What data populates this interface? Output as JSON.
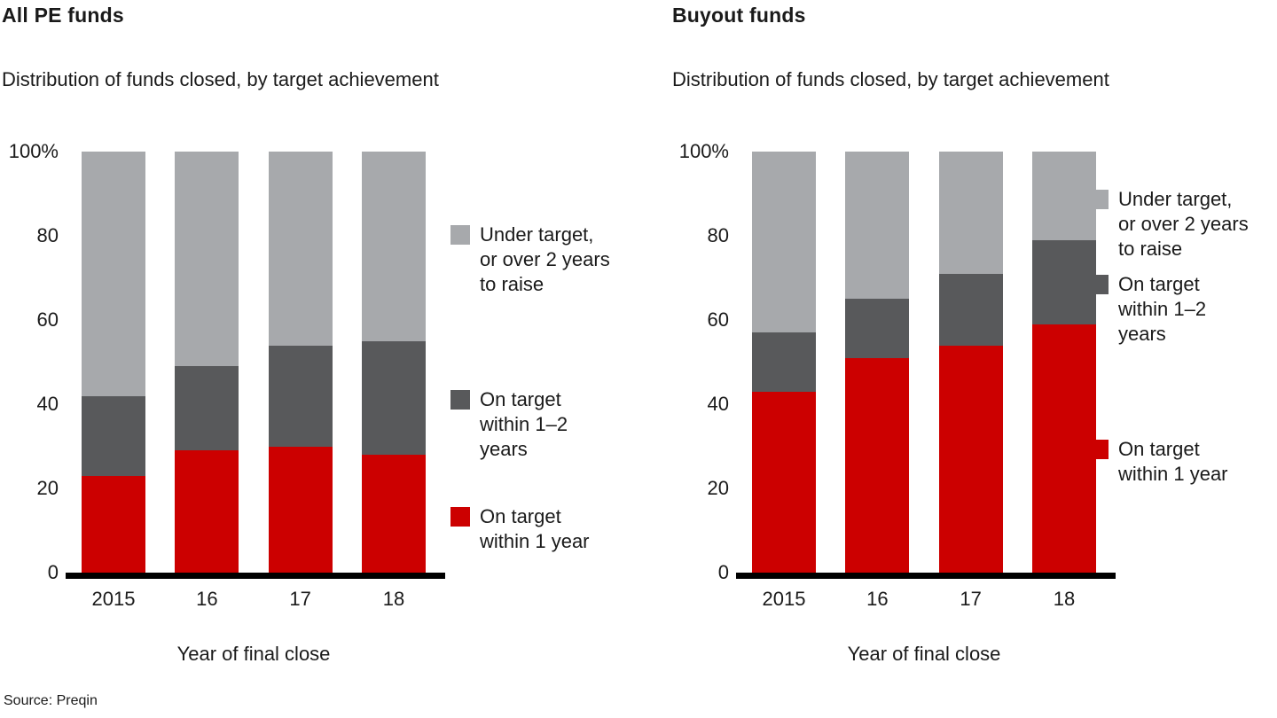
{
  "source": "Source: Preqin",
  "chart_data": [
    {
      "type": "bar",
      "stacked": true,
      "title": "All PE funds",
      "subtitle": "Distribution of funds closed, by target achievement",
      "xlabel": "Year of final close",
      "ylabel": "",
      "ylim": [
        0,
        100
      ],
      "grid": false,
      "legend_position": "right",
      "yticks": [
        {
          "label": "100%",
          "value": 100
        },
        {
          "label": "80",
          "value": 80
        },
        {
          "label": "60",
          "value": 60
        },
        {
          "label": "40",
          "value": 40
        },
        {
          "label": "20",
          "value": 20
        },
        {
          "label": "0",
          "value": 0
        }
      ],
      "categories": [
        "2015",
        "16",
        "17",
        "18"
      ],
      "series": [
        {
          "name": "On target within 1 year",
          "color": "#cc0000",
          "values": [
            23,
            29,
            30,
            28
          ]
        },
        {
          "name": "On target within 1–2 years",
          "color": "#58595b",
          "values": [
            19,
            20,
            24,
            27
          ]
        },
        {
          "name": "Under target, or over 2 years to raise",
          "color": "#a7a9ac",
          "values": [
            58,
            51,
            46,
            45
          ]
        }
      ],
      "legend": [
        {
          "label": "Under target, or over 2 years to raise",
          "color": "#a7a9ac"
        },
        {
          "label": "On target within 1–2 years",
          "color": "#58595b"
        },
        {
          "label": "On target within 1 year",
          "color": "#cc0000"
        }
      ]
    },
    {
      "type": "bar",
      "stacked": true,
      "title": "Buyout funds",
      "subtitle": "Distribution of funds closed, by target achievement",
      "xlabel": "Year of final close",
      "ylabel": "",
      "ylim": [
        0,
        100
      ],
      "grid": false,
      "legend_position": "right",
      "yticks": [
        {
          "label": "100%",
          "value": 100
        },
        {
          "label": "80",
          "value": 80
        },
        {
          "label": "60",
          "value": 60
        },
        {
          "label": "40",
          "value": 40
        },
        {
          "label": "20",
          "value": 20
        },
        {
          "label": "0",
          "value": 0
        }
      ],
      "categories": [
        "2015",
        "16",
        "17",
        "18"
      ],
      "series": [
        {
          "name": "On target within 1 year",
          "color": "#cc0000",
          "values": [
            43,
            51,
            54,
            59
          ]
        },
        {
          "name": "On target within 1–2 years",
          "color": "#58595b",
          "values": [
            14,
            14,
            17,
            20
          ]
        },
        {
          "name": "Under target, or over 2 years to raise",
          "color": "#a7a9ac",
          "values": [
            43,
            35,
            29,
            21
          ]
        }
      ],
      "legend": [
        {
          "label": "Under target, or over 2 years to raise",
          "color": "#a7a9ac"
        },
        {
          "label": "On target within 1–2 years",
          "color": "#58595b"
        },
        {
          "label": "On target within 1 year",
          "color": "#cc0000"
        }
      ]
    }
  ]
}
